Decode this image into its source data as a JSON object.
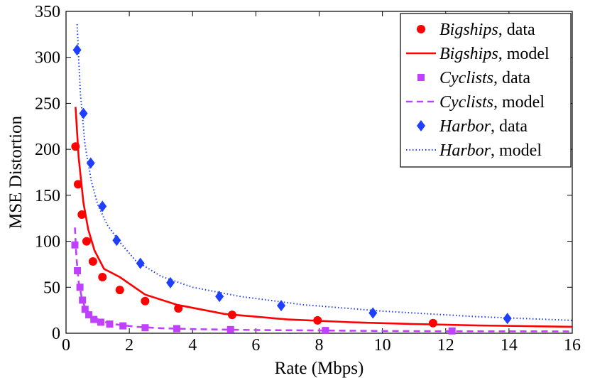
{
  "chart_data": {
    "type": "scatter",
    "title": "",
    "xlabel": "Rate (Mbps)",
    "ylabel": "MSE Distortion",
    "xlim": [
      0,
      16
    ],
    "ylim": [
      0,
      350
    ],
    "xticks": [
      0,
      2,
      4,
      6,
      8,
      10,
      12,
      14,
      16
    ],
    "yticks": [
      0,
      50,
      100,
      150,
      200,
      250,
      300,
      350
    ],
    "grid": false,
    "legend_position": "top-right",
    "series": [
      {
        "name": "Bigships",
        "legend_name": "Bigships",
        "legend_suffix_data": ", data",
        "legend_suffix_model": ", model",
        "color": "#ff0000",
        "marker": "circle",
        "model_style": "solid",
        "data_x": [
          0.3,
          0.38,
          0.5,
          0.65,
          0.85,
          1.15,
          1.7,
          2.5,
          3.55,
          5.25,
          7.95,
          11.6
        ],
        "data_y": [
          203,
          162,
          129,
          100,
          78,
          61,
          47,
          35,
          27,
          20,
          14,
          11
        ],
        "model_x": [
          0.3,
          0.4,
          0.55,
          0.7,
          0.9,
          1.2,
          1.7,
          2.5,
          3.5,
          5.0,
          7.0,
          9.0,
          11.0,
          13.0,
          16.0
        ],
        "model_y": [
          246,
          191,
          142,
          113,
          90,
          70,
          61,
          42,
          31,
          21,
          15,
          12,
          10,
          8.5,
          7
        ]
      },
      {
        "name": "Cyclists",
        "legend_name": "Cyclists",
        "legend_suffix_data": ", data",
        "legend_suffix_model": ", model",
        "color": "#bf40ff",
        "marker": "square",
        "model_style": "dashed",
        "data_x": [
          0.28,
          0.36,
          0.44,
          0.52,
          0.6,
          0.72,
          0.88,
          1.1,
          1.38,
          1.8,
          2.5,
          3.5,
          5.2,
          8.2,
          12.2
        ],
        "data_y": [
          96,
          68,
          50,
          36,
          26,
          20,
          15,
          12,
          10,
          8,
          6,
          5,
          4,
          3,
          2.5
        ],
        "model_x": [
          0.28,
          0.33,
          0.4,
          0.5,
          0.6,
          0.75,
          0.95,
          1.2,
          1.6,
          2.2,
          3.0,
          4.0,
          6.0,
          8.0,
          10.0,
          12.0,
          16.0
        ],
        "model_y": [
          115,
          82,
          56,
          38,
          28,
          21,
          16,
          12.5,
          9.5,
          7,
          5.5,
          4.5,
          3.5,
          3,
          2.5,
          2.2,
          2
        ]
      },
      {
        "name": "Harbor",
        "legend_name": "Harbor",
        "legend_suffix_data": ", data",
        "legend_suffix_model": ", model",
        "color": "#1f3fff",
        "marker": "diamond",
        "model_style": "dotted",
        "data_x": [
          0.35,
          0.55,
          0.78,
          1.15,
          1.6,
          2.35,
          3.3,
          4.85,
          6.8,
          9.7,
          13.95
        ],
        "data_y": [
          308,
          239,
          185,
          138,
          101,
          76,
          55,
          40,
          30,
          22,
          16
        ],
        "model_x": [
          0.35,
          0.45,
          0.6,
          0.8,
          1.0,
          1.3,
          1.7,
          2.2,
          3.0,
          4.0,
          5.5,
          7.5,
          10.0,
          13.0,
          16.0
        ],
        "model_y": [
          336,
          262,
          205,
          165,
          140,
          118,
          99,
          79,
          62,
          50,
          40,
          31,
          24,
          18,
          14
        ]
      }
    ]
  }
}
